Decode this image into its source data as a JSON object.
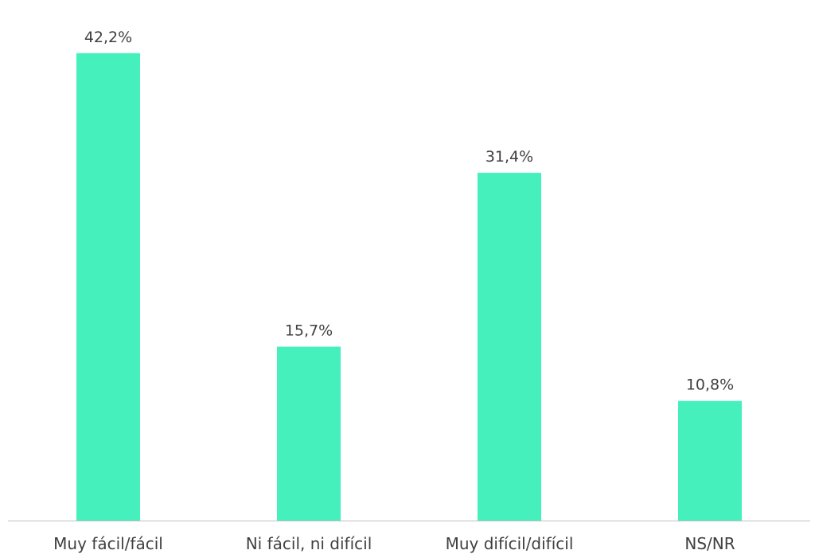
{
  "colors": {
    "bar": "#45f0bc",
    "axis": "#bfbfbf",
    "text": "#404040"
  },
  "chart_data": {
    "type": "bar",
    "title": "",
    "xlabel": "",
    "ylabel": "",
    "grid": false,
    "legend": "none",
    "ylim": [
      0,
      47
    ],
    "categories": [
      "Muy fácil/fácil",
      "Ni fácil, ni difícil",
      "Muy difícil/difícil",
      "NS/NR"
    ],
    "values": [
      42.2,
      15.7,
      31.4,
      10.8
    ],
    "value_labels": [
      "42,2%",
      "15,7%",
      "31,4%",
      "10,8%"
    ]
  }
}
